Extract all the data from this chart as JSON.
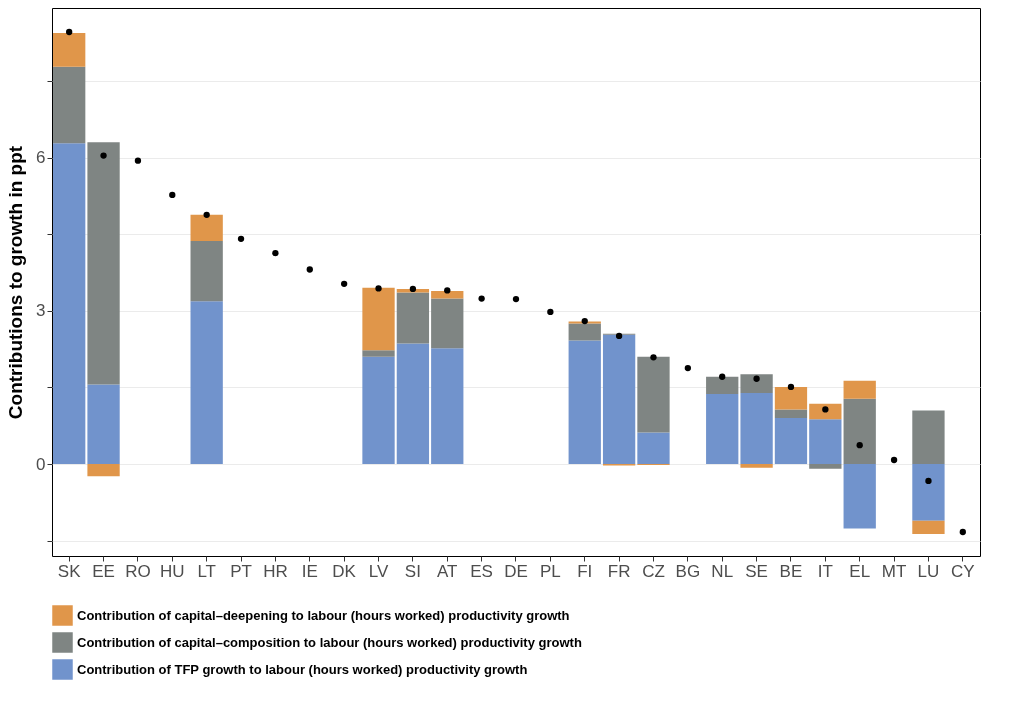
{
  "chart_data": {
    "type": "bar",
    "stacked": true,
    "ylabel": "Contributions to growth in ppt",
    "categories": [
      "SK",
      "EE",
      "RO",
      "HU",
      "LT",
      "PT",
      "HR",
      "IE",
      "DK",
      "LV",
      "SI",
      "AT",
      "ES",
      "DE",
      "PL",
      "FI",
      "FR",
      "CZ",
      "BG",
      "NL",
      "SE",
      "BE",
      "IT",
      "EL",
      "MT",
      "LU",
      "CY"
    ],
    "series": [
      {
        "name": "Contribution of TFP growth to labour (hours worked) productivity growth",
        "color": "#7193cc",
        "values": [
          6.28,
          1.56,
          null,
          null,
          3.19,
          null,
          null,
          null,
          null,
          2.1,
          2.36,
          2.27,
          null,
          null,
          null,
          2.42,
          2.53,
          0.62,
          null,
          1.37,
          1.39,
          0.9,
          0.88,
          -1.26,
          null,
          -1.11,
          null
        ]
      },
      {
        "name": "Contribution of capital–composition to labour (hours worked) productivity growth",
        "color": "#7f8583",
        "values": [
          1.5,
          4.74,
          null,
          null,
          1.18,
          null,
          null,
          null,
          null,
          0.13,
          1.0,
          0.97,
          null,
          null,
          null,
          0.33,
          0.02,
          1.48,
          null,
          0.34,
          0.37,
          0.17,
          -0.09,
          1.28,
          null,
          1.05,
          null
        ]
      },
      {
        "name": "Contribution of capital–deepening to labour (hours worked) productivity growth",
        "color": "#e0964a",
        "values": [
          0.66,
          -0.24,
          null,
          null,
          0.51,
          null,
          null,
          null,
          null,
          1.22,
          0.07,
          0.15,
          null,
          null,
          null,
          0.04,
          -0.03,
          -0.02,
          null,
          null,
          -0.07,
          0.44,
          0.3,
          0.35,
          null,
          -0.26,
          null
        ]
      },
      {
        "type": "scatter",
        "color": "#000000",
        "marker": "circle",
        "values": [
          8.46,
          6.04,
          5.94,
          5.27,
          4.88,
          4.41,
          4.13,
          3.81,
          3.53,
          3.44,
          3.43,
          3.4,
          3.24,
          3.23,
          2.98,
          2.8,
          2.51,
          2.09,
          1.88,
          1.71,
          1.67,
          1.51,
          1.07,
          0.37,
          0.08,
          -0.33,
          -1.33
        ]
      }
    ],
    "ylim": [
      -1.8,
      8.93
    ],
    "yticks": [
      {
        "value": -1.5,
        "label": null
      },
      0,
      {
        "value": 1.5,
        "label": null
      },
      3,
      {
        "value": 4.5,
        "label": null
      },
      6,
      {
        "value": 7.5,
        "label": null
      }
    ],
    "grid": "y",
    "legend": "bottom"
  }
}
